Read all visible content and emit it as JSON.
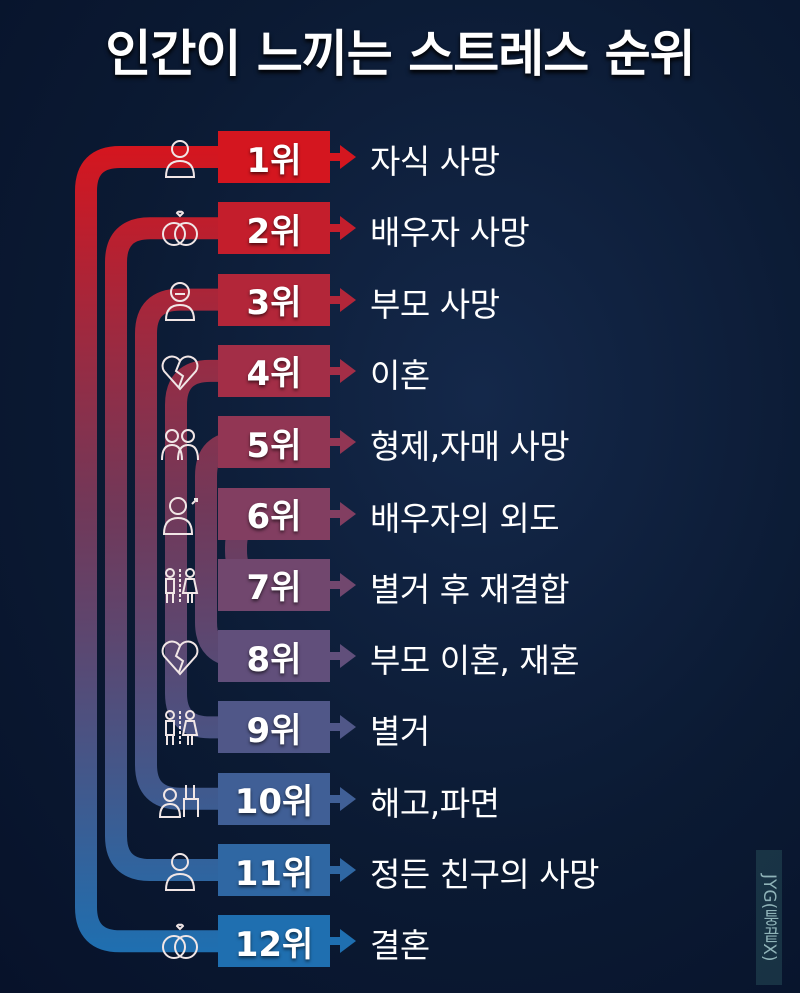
{
  "title": "인간이 느끼는 스트레스 순위",
  "colors": {
    "top": "#d4161f",
    "bottom": "#1f6fb0",
    "background": "#0b1a33"
  },
  "watermark": "JYG(퉁끝X)",
  "items": [
    {
      "rank": "1위",
      "label": "자식 사망",
      "icon": "person-icon"
    },
    {
      "rank": "2위",
      "label": "배우자 사망",
      "icon": "rings-icon"
    },
    {
      "rank": "3위",
      "label": "부모 사망",
      "icon": "elder-icon"
    },
    {
      "rank": "4위",
      "label": "이혼",
      "icon": "broken-heart-icon"
    },
    {
      "rank": "5위",
      "label": "형제,자매 사망",
      "icon": "siblings-icon"
    },
    {
      "rank": "6위",
      "label": "배우자의 외도",
      "icon": "affair-icon"
    },
    {
      "rank": "7위",
      "label": "별거 후 재결합",
      "icon": "couple-icon"
    },
    {
      "rank": "8위",
      "label": "부모 이혼, 재혼",
      "icon": "broken-heart-icon"
    },
    {
      "rank": "9위",
      "label": "별거",
      "icon": "couple-icon"
    },
    {
      "rank": "10위",
      "label": "해고,파면",
      "icon": "fired-icon"
    },
    {
      "rank": "11위",
      "label": "정든 친구의 사망",
      "icon": "person-icon"
    },
    {
      "rank": "12위",
      "label": "결혼",
      "icon": "rings-icon"
    }
  ]
}
